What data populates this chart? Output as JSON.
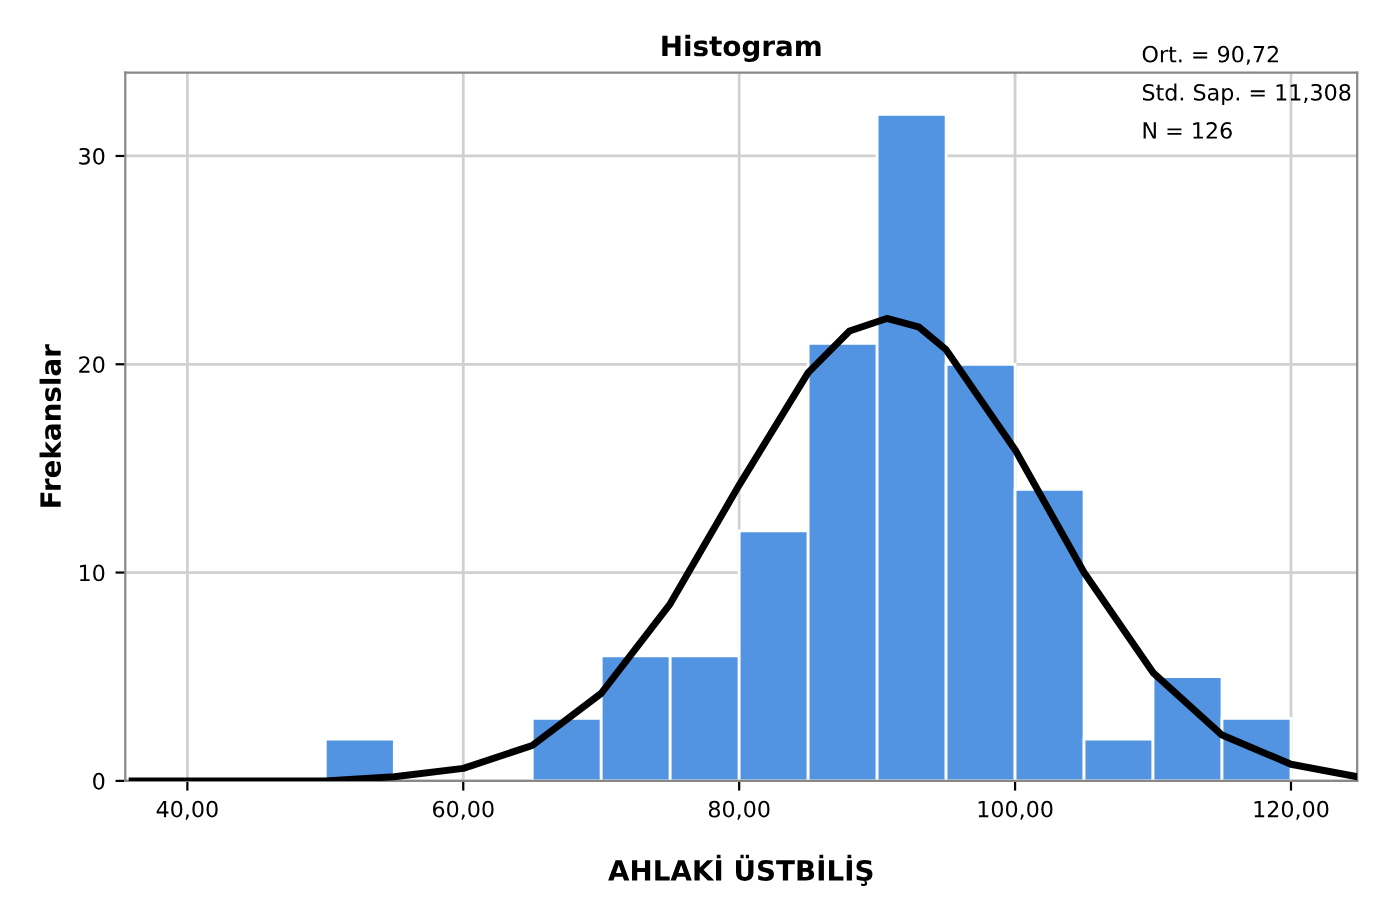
{
  "chart_data": [
    {
      "type": "histogram",
      "title": "Histogram",
      "xlabel": "AHLAKİ ÜSTBİLİŞ",
      "ylabel": "Frekanslar",
      "bins": [
        50,
        55,
        60,
        65,
        70,
        75,
        80,
        85,
        90,
        95,
        100,
        105,
        110,
        115,
        120
      ],
      "values": [
        2,
        0,
        0,
        3,
        6,
        6,
        12,
        21,
        32,
        20,
        14,
        2,
        5,
        3
      ],
      "color": "#5294e2",
      "series": [
        {
          "type": "line",
          "color": "#000000",
          "x": [
            36,
            45,
            50,
            55,
            60,
            65,
            70,
            75,
            80,
            85,
            88,
            90.7,
            93,
            95,
            100,
            105,
            110,
            115,
            120,
            124.8
          ],
          "values": [
            0,
            0,
            0,
            0.2,
            0.6,
            1.7,
            4.2,
            8.5,
            14.2,
            19.6,
            21.6,
            22.2,
            21.8,
            20.7,
            15.9,
            10,
            5.2,
            2.2,
            0.8,
            0.2
          ]
        }
      ],
      "xlim": [
        35.5,
        124.8
      ],
      "ylim": [
        0,
        34
      ],
      "xticks": [
        {
          "value": 40,
          "label": "40,00"
        },
        {
          "value": 60,
          "label": "60,00"
        },
        {
          "value": 80,
          "label": "80,00"
        },
        {
          "value": 100,
          "label": "100,00"
        },
        {
          "value": 120,
          "label": "120,00"
        }
      ],
      "yticks": [
        0,
        10,
        20,
        30
      ],
      "grid": true,
      "annotations": [
        "Ort. = 90,72",
        "Std. Sap. = 11,308",
        "N = 126"
      ]
    }
  ]
}
